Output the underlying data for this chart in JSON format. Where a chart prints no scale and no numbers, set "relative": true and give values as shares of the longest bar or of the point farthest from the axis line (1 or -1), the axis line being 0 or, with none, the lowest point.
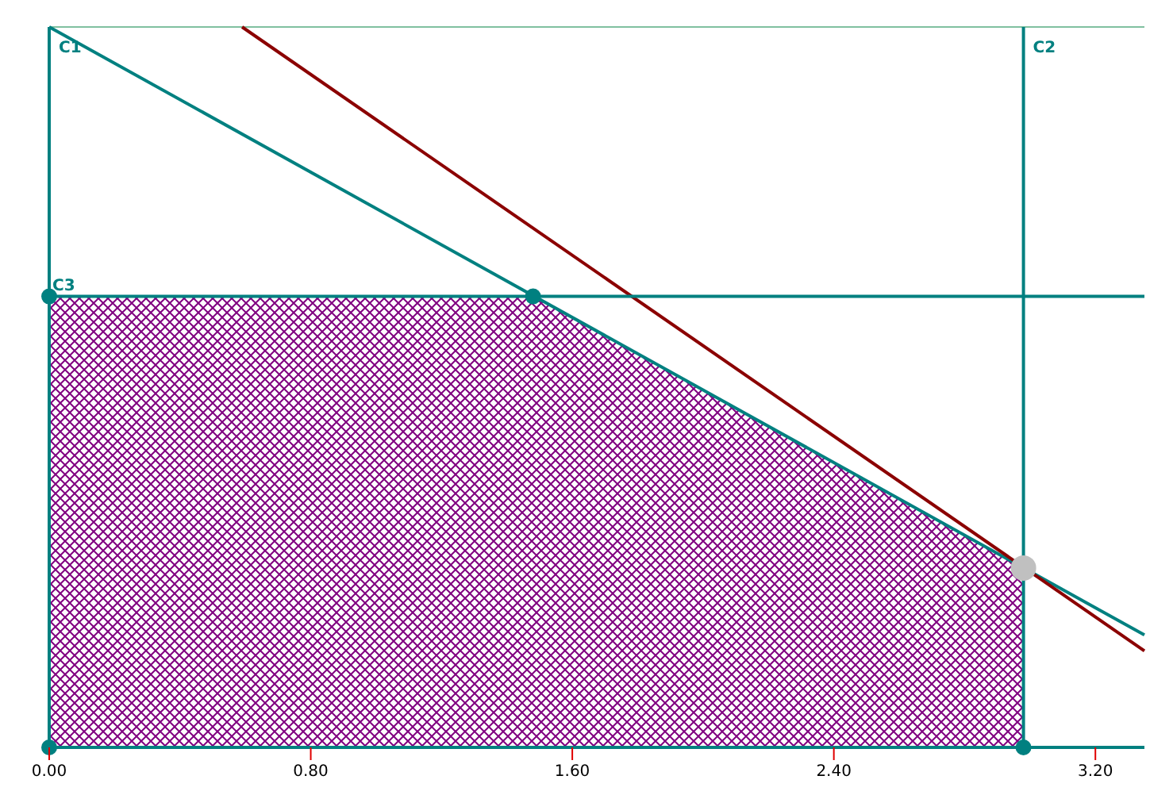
{
  "chart_data": {
    "type": "line",
    "relative": true,
    "xlim": [
      0,
      3.35
    ],
    "xticks": [
      {
        "value": 0,
        "label": "0.00"
      },
      {
        "value": 0.8,
        "label": "0.80"
      },
      {
        "value": 1.6,
        "label": "1.60"
      },
      {
        "value": 2.4,
        "label": "2.40"
      },
      {
        "value": 3.2,
        "label": "3.20"
      }
    ],
    "line_style": "solid",
    "grid": false,
    "series": [
      {
        "type": "area",
        "color": "#800080",
        "x": [
          0,
          1.48,
          2.98
        ],
        "values": [
          0.626,
          0.626,
          0.249
        ]
      },
      {
        "name": "C1",
        "color": "#008080",
        "x": [
          0,
          3.35
        ],
        "values": [
          1,
          0.156
        ]
      },
      {
        "color": "#8b0000",
        "x": [
          0.59,
          3.35
        ],
        "values": [
          1,
          0.134
        ]
      },
      {
        "name": "C2",
        "color": "#008080",
        "x": [
          2.98,
          2.98
        ],
        "values": [
          1,
          0
        ]
      },
      {
        "name": "C3",
        "color": "#008080",
        "x": [
          0,
          3.35
        ],
        "values": [
          0.626,
          0.626
        ]
      },
      {
        "type": "scatter",
        "marker": "circle",
        "color": "#008080",
        "x": [
          0,
          0,
          1.48,
          2.98
        ],
        "values": [
          0,
          0.626,
          0.626,
          0
        ]
      },
      {
        "type": "scatter",
        "marker": "circle",
        "color": "#c0c0c0",
        "x": [
          2.98
        ],
        "values": [
          0.249
        ]
      }
    ]
  }
}
